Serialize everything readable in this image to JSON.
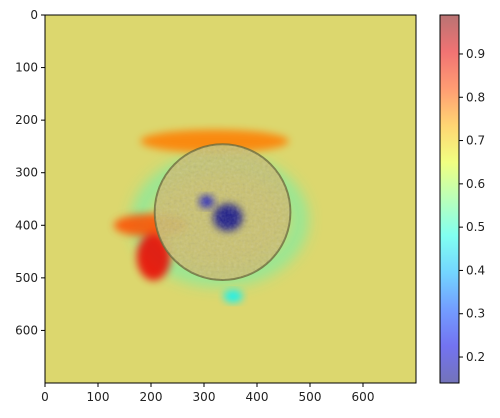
{
  "chart_data": {
    "type": "heatmap",
    "title": "",
    "xlabel": "",
    "ylabel": "",
    "xlim": [
      0,
      700
    ],
    "ylim": [
      700,
      0
    ],
    "x_ticks": [
      0,
      100,
      200,
      300,
      400,
      500,
      600
    ],
    "y_ticks": [
      0,
      100,
      200,
      300,
      400,
      500,
      600
    ],
    "colorbar": {
      "colormap": "jet",
      "alpha": 0.5,
      "range": [
        0.14,
        0.99
      ],
      "ticks": [
        0.2,
        0.3,
        0.4,
        0.5,
        0.6,
        0.7,
        0.8,
        0.9
      ]
    },
    "background_value": 0.68,
    "regions": [
      {
        "feature": "cell body",
        "cx": 335,
        "cy": 375,
        "radius": 128,
        "value": 0.62
      },
      {
        "feature": "center low (deep blue)",
        "cx": 345,
        "cy": 385,
        "rx": 28,
        "ry": 26,
        "value": 0.15
      },
      {
        "feature": "upper-left low",
        "cx": 305,
        "cy": 355,
        "rx": 14,
        "ry": 12,
        "value": 0.2
      },
      {
        "feature": "low ring",
        "cx": 330,
        "cy": 390,
        "rx": 150,
        "ry": 110,
        "value": 0.5
      },
      {
        "feature": "lower-left high (red)",
        "cx": 205,
        "cy": 460,
        "rx": 32,
        "ry": 45,
        "value": 0.9
      },
      {
        "feature": "left high band",
        "cx": 200,
        "cy": 400,
        "rx": 70,
        "ry": 22,
        "value": 0.82
      },
      {
        "feature": "upper high band",
        "cx": 320,
        "cy": 240,
        "rx": 140,
        "ry": 22,
        "value": 0.78
      },
      {
        "feature": "bottom blob",
        "cx": 355,
        "cy": 535,
        "rx": 18,
        "ry": 12,
        "value": 0.45
      }
    ],
    "colors": {
      "background": "#dcd76e",
      "axis": "#000000"
    }
  }
}
